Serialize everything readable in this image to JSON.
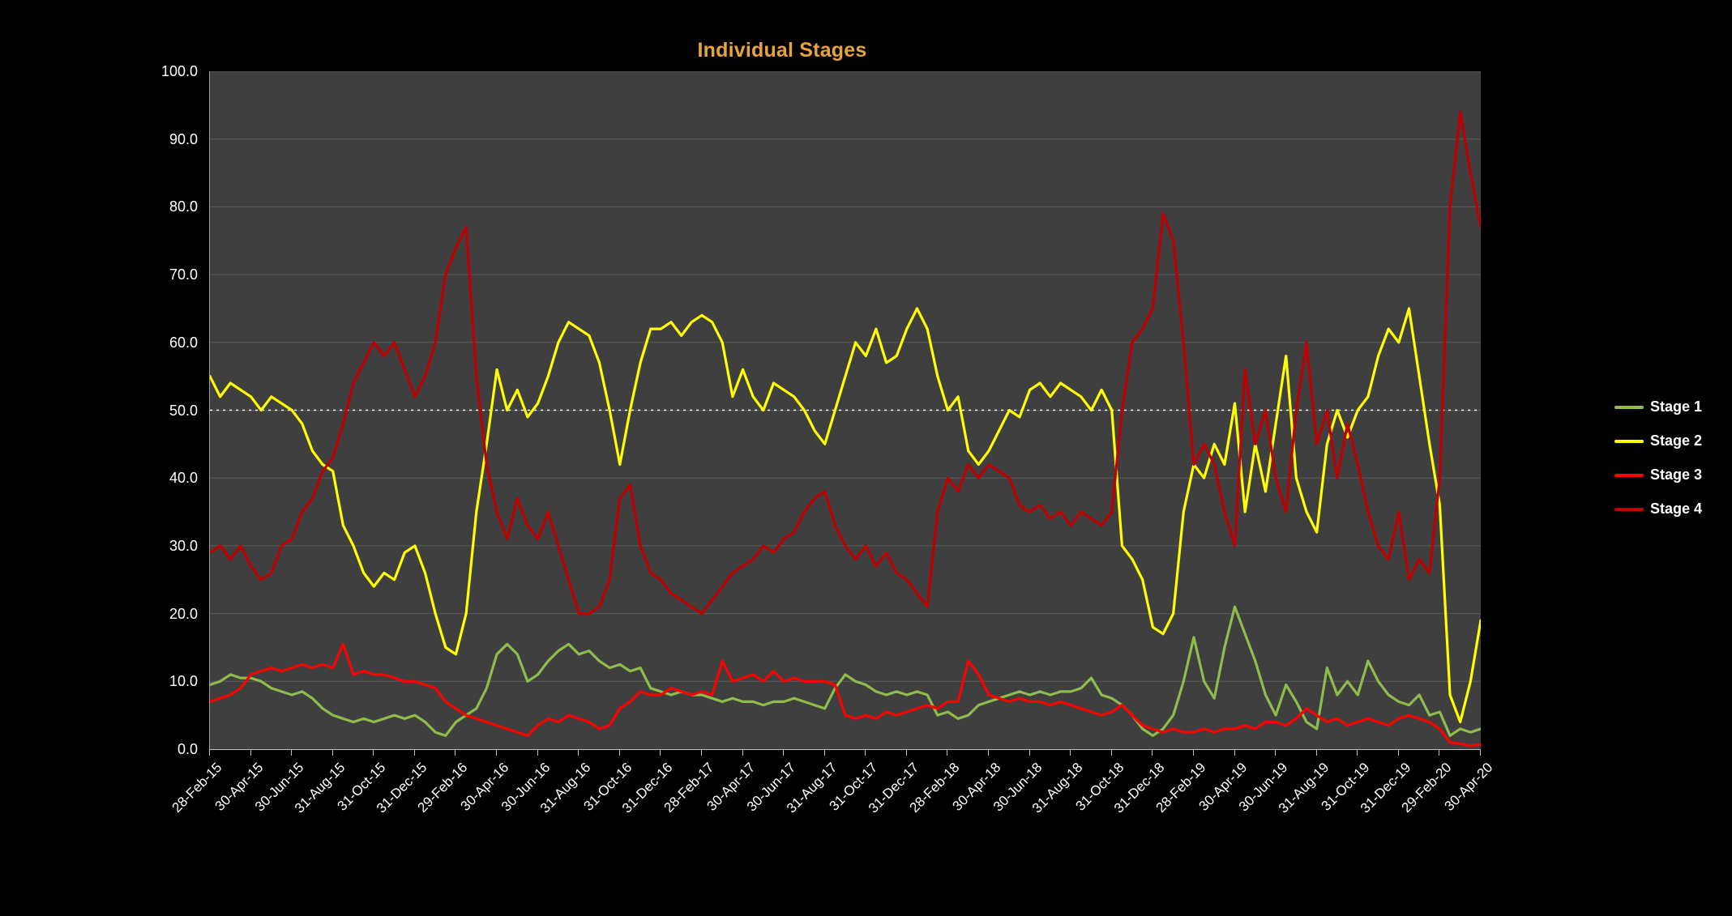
{
  "colors": {
    "page_background": "#000000",
    "plot_background": "#3F3F3F",
    "gridline": "#5B5B5B",
    "axis_text": "#FFFFFF",
    "title": "#E8A33D"
  },
  "chart_data": {
    "type": "line",
    "title": "Individual Stages",
    "xlabel": "",
    "ylabel": "",
    "ylim": [
      0,
      100
    ],
    "grid": true,
    "legend_position": "right",
    "y_ticks": [
      0,
      10,
      20,
      30,
      40,
      50,
      60,
      70,
      80,
      90,
      100
    ],
    "y_tick_labels": [
      "0.0",
      "10.0",
      "20.0",
      "30.0",
      "40.0",
      "50.0",
      "60.0",
      "70.0",
      "80.0",
      "90.0",
      "100.0"
    ],
    "reference_line": {
      "y": 50.0,
      "color": "#FFFFFF",
      "style": "dotted"
    },
    "tick_every": 4,
    "x_tick_labels": [
      "28-Feb-15",
      "30-Apr-15",
      "30-Jun-15",
      "31-Aug-15",
      "31-Oct-15",
      "31-Dec-15",
      "29-Feb-16",
      "30-Apr-16",
      "30-Jun-16",
      "31-Aug-16",
      "31-Oct-16",
      "31-Dec-16",
      "28-Feb-17",
      "30-Apr-17",
      "30-Jun-17",
      "31-Aug-17",
      "31-Oct-17",
      "31-Dec-17",
      "28-Feb-18",
      "30-Apr-18",
      "30-Jun-18",
      "31-Aug-18",
      "31-Oct-18",
      "31-Dec-18",
      "28-Feb-19",
      "30-Apr-19",
      "30-Jun-19",
      "31-Aug-19",
      "31-Oct-19",
      "31-Dec-19",
      "29-Feb-20",
      "30-Apr-20"
    ],
    "series": [
      {
        "name": "Stage 1",
        "color": "#8FBC4D",
        "values": [
          9.5,
          10,
          11,
          10.5,
          10.5,
          10,
          9,
          8.5,
          8,
          8.5,
          7.5,
          6,
          5,
          4.5,
          4,
          4.5,
          4,
          4.5,
          5,
          4.5,
          5,
          4,
          2.5,
          2,
          4,
          5,
          6,
          9,
          14,
          15.5,
          14,
          10,
          11,
          13,
          14.5,
          15.5,
          14,
          14.5,
          13,
          12,
          12.5,
          11.5,
          12,
          9,
          8.5,
          8,
          8.5,
          8,
          8,
          7.5,
          7,
          7.5,
          7,
          7,
          6.5,
          7,
          7,
          7.5,
          7,
          6.5,
          6,
          9,
          11,
          10,
          9.5,
          8.5,
          8,
          8.5,
          8,
          8.5,
          8,
          5,
          5.5,
          4.5,
          5,
          6.5,
          7,
          7.5,
          8,
          8.5,
          8,
          8.5,
          8,
          8.5,
          8.5,
          9,
          10.5,
          8,
          7.5,
          6.5,
          5,
          3,
          2,
          3,
          5,
          10,
          16.5,
          10,
          7.5,
          15,
          21,
          17,
          13,
          8,
          5,
          9.5,
          7,
          4,
          3,
          12,
          8,
          10,
          8,
          13,
          10,
          8,
          7,
          6.5,
          8,
          5,
          5.5,
          2,
          3,
          2.5,
          3
        ]
      },
      {
        "name": "Stage 2",
        "color": "#FFFF00",
        "values": [
          55,
          52,
          54,
          53,
          52,
          50,
          52,
          51,
          50,
          48,
          44,
          42,
          41,
          33,
          30,
          26,
          24,
          26,
          25,
          29,
          30,
          26,
          20,
          15,
          14,
          20,
          35,
          45,
          56,
          50,
          53,
          49,
          51,
          55,
          60,
          63,
          62,
          61,
          57,
          50,
          42,
          50,
          57,
          62,
          62,
          63,
          61,
          63,
          64,
          63,
          60,
          52,
          56,
          52,
          50,
          54,
          53,
          52,
          50,
          47,
          45,
          50,
          55,
          60,
          58,
          62,
          57,
          58,
          62,
          65,
          62,
          55,
          50,
          52,
          44,
          42,
          44,
          47,
          50,
          49,
          53,
          54,
          52,
          54,
          53,
          52,
          50,
          53,
          50,
          30,
          28,
          25,
          18,
          17,
          20,
          35,
          42,
          40,
          45,
          42,
          51,
          35,
          45,
          38,
          48,
          58,
          40,
          35,
          32,
          45,
          50,
          46,
          50,
          52,
          58,
          62,
          60,
          65,
          55,
          45,
          36,
          8,
          4,
          10,
          19
        ]
      },
      {
        "name": "Stage 3",
        "color": "#FF0000",
        "values": [
          7,
          7.5,
          8,
          9,
          11,
          11.5,
          12,
          11.5,
          12,
          12.5,
          12,
          12.5,
          12,
          15.5,
          11,
          11.5,
          11,
          11,
          10.5,
          10,
          10,
          9.5,
          9,
          7,
          6,
          5,
          4.5,
          4,
          3.5,
          3,
          2.5,
          2,
          3.5,
          4.5,
          4,
          5,
          4.5,
          4,
          3,
          3.5,
          6,
          7,
          8.5,
          8,
          8,
          9,
          8.5,
          8,
          8.5,
          8,
          13,
          10,
          10.5,
          11,
          10,
          11.5,
          10,
          10.5,
          10,
          10,
          10,
          9.5,
          5,
          4.5,
          5,
          4.5,
          5.5,
          5,
          5.5,
          6,
          6.5,
          6,
          7,
          7,
          13,
          11,
          8,
          7.5,
          7,
          7.5,
          7,
          7,
          6.5,
          7,
          6.5,
          6,
          5.5,
          5,
          5.5,
          6.5,
          5,
          3.5,
          3,
          2.5,
          3,
          2.5,
          2.5,
          3,
          2.5,
          3,
          3,
          3.5,
          3,
          4,
          4,
          3.5,
          4.5,
          6,
          5,
          4,
          4.5,
          3.5,
          4,
          4.5,
          4,
          3.5,
          4.5,
          5,
          4.5,
          4,
          3,
          1,
          0.8,
          0.5,
          0.7
        ]
      },
      {
        "name": "Stage 4",
        "color": "#C00000",
        "values": [
          29,
          30,
          28,
          30,
          27,
          25,
          26,
          30,
          31,
          35,
          37,
          41,
          43,
          48,
          54,
          57,
          60,
          58,
          60,
          56,
          52,
          55,
          60,
          70,
          74,
          77,
          55,
          42,
          35,
          31,
          37,
          33,
          31,
          35,
          30,
          25,
          20,
          20,
          21,
          25,
          37,
          39,
          30,
          26,
          25,
          23,
          22,
          21,
          20,
          22,
          24,
          26,
          27,
          28,
          30,
          29,
          31,
          32,
          35,
          37,
          38,
          33,
          30,
          28,
          30,
          27,
          29,
          26,
          25,
          23,
          21,
          35,
          40,
          38,
          42,
          40,
          42,
          41,
          40,
          36,
          35,
          36,
          34,
          35,
          33,
          35,
          34,
          33,
          35,
          50,
          60,
          62,
          65,
          79,
          75,
          60,
          42,
          45,
          42,
          35,
          30,
          56,
          45,
          50,
          40,
          35,
          50,
          60,
          45,
          50,
          40,
          48,
          42,
          35,
          30,
          28,
          35,
          25,
          28,
          26,
          40,
          80,
          94,
          85,
          77
        ]
      }
    ]
  }
}
